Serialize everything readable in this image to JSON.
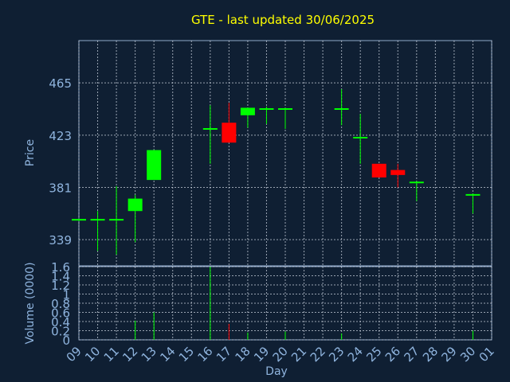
{
  "chart_data": {
    "type": "candlestick",
    "title": "GTE - last updated 30/06/2025",
    "x_categories": [
      "09",
      "10",
      "11",
      "12",
      "13",
      "14",
      "15",
      "16",
      "17",
      "18",
      "19",
      "20",
      "21",
      "22",
      "23",
      "24",
      "25",
      "26",
      "27",
      "28",
      "29",
      "30",
      "01"
    ],
    "xlabel": "Day",
    "price": {
      "ylabel": "Price",
      "yticks": [
        339,
        381,
        423,
        465
      ],
      "ylim": [
        318,
        499
      ],
      "candles": [
        {
          "day": "09",
          "open": 355,
          "high": 356,
          "low": 354,
          "close": 355
        },
        {
          "day": "10",
          "open": 355,
          "high": 362,
          "low": 330,
          "close": 355
        },
        {
          "day": "11",
          "open": 355,
          "high": 382,
          "low": 327,
          "close": 355
        },
        {
          "day": "12",
          "open": 362,
          "high": 375,
          "low": 337,
          "close": 372
        },
        {
          "day": "13",
          "open": 387,
          "high": 411,
          "low": 387,
          "close": 411
        },
        {
          "day": "16",
          "open": 428,
          "high": 447,
          "low": 400,
          "close": 428
        },
        {
          "day": "17",
          "open": 433,
          "high": 449,
          "low": 417,
          "close": 417
        },
        {
          "day": "18",
          "open": 439,
          "high": 445,
          "low": 429,
          "close": 445
        },
        {
          "day": "19",
          "open": 444,
          "high": 446,
          "low": 432,
          "close": 444
        },
        {
          "day": "20",
          "open": 444,
          "high": 445,
          "low": 428,
          "close": 444
        },
        {
          "day": "23",
          "open": 444,
          "high": 460,
          "low": 431,
          "close": 444
        },
        {
          "day": "24",
          "open": 421,
          "high": 440,
          "low": 400,
          "close": 421
        },
        {
          "day": "25",
          "open": 400,
          "high": 400,
          "low": 389,
          "close": 389
        },
        {
          "day": "26",
          "open": 395,
          "high": 400,
          "low": 381,
          "close": 391
        },
        {
          "day": "27",
          "open": 385,
          "high": 386,
          "low": 370,
          "close": 385
        },
        {
          "day": "30",
          "open": 375,
          "high": 376,
          "low": 360,
          "close": 375
        }
      ]
    },
    "volume": {
      "ylabel": "Volume (0000)",
      "yticks": [
        0,
        0.2,
        0.4,
        0.6,
        0.8,
        1,
        1.2,
        1.4,
        1.6
      ],
      "ylim": [
        0,
        1.6
      ],
      "values": [
        {
          "day": "12",
          "value": 0.42,
          "direction": "up"
        },
        {
          "day": "13",
          "value": 0.6,
          "direction": "up"
        },
        {
          "day": "16",
          "value": 1.6,
          "direction": "up"
        },
        {
          "day": "17",
          "value": 0.35,
          "direction": "down"
        },
        {
          "day": "18",
          "value": 0.16,
          "direction": "up"
        },
        {
          "day": "20",
          "value": 0.18,
          "direction": "up"
        },
        {
          "day": "23",
          "value": 0.14,
          "direction": "up"
        },
        {
          "day": "30",
          "value": 0.2,
          "direction": "up"
        }
      ]
    },
    "colors": {
      "up": "#00ff00",
      "down": "#ff0000",
      "background": "#0f1f33",
      "text": "#8fb4de",
      "title": "#ffff00"
    },
    "grid": true
  }
}
